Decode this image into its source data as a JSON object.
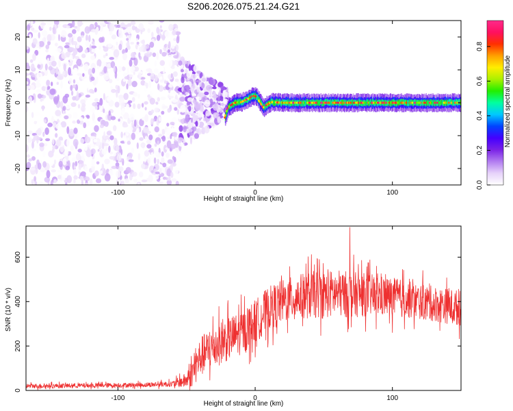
{
  "title": "S206.2026.075.21.24.G21",
  "chart_data": [
    {
      "type": "heatmap",
      "name": "spectrogram",
      "xlabel": "Height of straight line (km)",
      "ylabel": "Frequency (Hz)",
      "xlim": [
        -167,
        150
      ],
      "ylim": [
        -25,
        25
      ],
      "xticks": [
        -100,
        0,
        100
      ],
      "yticks": [
        -20,
        -10,
        0,
        10,
        20
      ],
      "colorbar": {
        "label": "Normalized spectral amplitude",
        "range": [
          0,
          0.95
        ],
        "ticks": [
          0.0,
          0.2,
          0.4,
          0.6,
          0.8
        ],
        "colormap": [
          "#ffffff",
          "#e6d2fa",
          "#b27cf0",
          "#7a22e6",
          "#4400ff",
          "#0044ff",
          "#00c8ff",
          "#00ffa0",
          "#22ee00",
          "#aaf000",
          "#ffee00",
          "#ffa000",
          "#ff3000",
          "#ff1060",
          "#ff2a8a"
        ]
      },
      "regions": [
        {
          "x_range": [
            -167,
            -55
          ],
          "description": "broadband noise",
          "amplitude": [
            0.0,
            0.12
          ]
        },
        {
          "x_range": [
            -55,
            -20
          ],
          "description": "transition noise burst",
          "amplitude": [
            0.0,
            0.2
          ]
        },
        {
          "x_range": [
            -22,
            150
          ],
          "description": "signal band centered near 0 Hz",
          "amplitude": [
            0.3,
            0.95
          ]
        }
      ],
      "signal_center_hz": [
        [
          -22,
          -4.5
        ],
        [
          -20,
          -1.5
        ],
        [
          -15,
          0.0
        ],
        [
          -10,
          0.2
        ],
        [
          -5,
          1.2
        ],
        [
          -2,
          2.0
        ],
        [
          0,
          2.2
        ],
        [
          3,
          0.5
        ],
        [
          6,
          -1.5
        ],
        [
          9,
          -0.5
        ],
        [
          12,
          0.2
        ],
        [
          20,
          0.0
        ],
        [
          40,
          0.0
        ],
        [
          60,
          0.0
        ],
        [
          80,
          0.0
        ],
        [
          100,
          0.0
        ],
        [
          120,
          0.0
        ],
        [
          150,
          0.0
        ]
      ]
    },
    {
      "type": "line",
      "name": "snr",
      "xlabel": "Height of straight line (km)",
      "ylabel": "SNR (10 * v/v)",
      "xlim": [
        -167,
        150
      ],
      "ylim": [
        0,
        740
      ],
      "xticks": [
        -100,
        0,
        100
      ],
      "yticks": [
        0,
        200,
        400,
        600
      ],
      "color": "#ee3030",
      "envelope": {
        "x": [
          -167,
          -120,
          -80,
          -60,
          -50,
          -45,
          -40,
          -30,
          -20,
          -10,
          0,
          10,
          20,
          30,
          40,
          60,
          80,
          100,
          120,
          140,
          150
        ],
        "mean": [
          20,
          22,
          25,
          30,
          45,
          90,
          150,
          200,
          230,
          260,
          310,
          370,
          400,
          420,
          430,
          435,
          430,
          420,
          400,
          380,
          370
        ],
        "spread": [
          12,
          12,
          12,
          15,
          40,
          80,
          100,
          110,
          110,
          110,
          110,
          110,
          110,
          110,
          120,
          120,
          110,
          100,
          90,
          90,
          90
        ]
      },
      "peak": {
        "x": 69,
        "y": 735
      }
    }
  ]
}
